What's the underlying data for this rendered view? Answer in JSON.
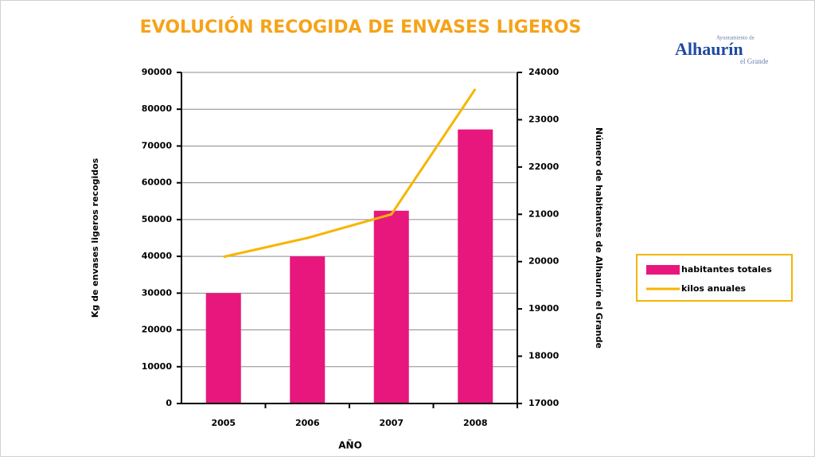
{
  "chart_data": {
    "type": "bar-line",
    "title": "EVOLUCIÓN RECOGIDA DE ENVASES LIGEROS",
    "x_label": "AÑO",
    "y_label": "Kg de envases ligeros recogidos",
    "y2_label": "Número de habitantes de  Alhaurín el Grande",
    "categories": [
      "2005",
      "2006",
      "2007",
      "2008"
    ],
    "series": [
      {
        "name": "habitantes totales",
        "type": "bar",
        "color": "#e8177d",
        "values": [
          30000,
          40000,
          52400,
          74500
        ]
      },
      {
        "name": "kilos anuales",
        "type": "line",
        "axis": "y2",
        "color": "#f7b500",
        "values": [
          20100,
          20500,
          21000,
          23650
        ]
      }
    ],
    "ylim": [
      0,
      90000
    ],
    "yticks": [
      0,
      10000,
      20000,
      30000,
      40000,
      50000,
      60000,
      70000,
      80000,
      90000
    ],
    "y2lim": [
      17000,
      24000
    ],
    "y2ticks": [
      17000,
      18000,
      19000,
      20000,
      21000,
      22000,
      23000,
      24000
    ],
    "grid": true,
    "legend": "right"
  },
  "logo": {
    "line1": "Ayuntamiento de",
    "line2": "Alhaurín",
    "line3": "el Grande"
  }
}
